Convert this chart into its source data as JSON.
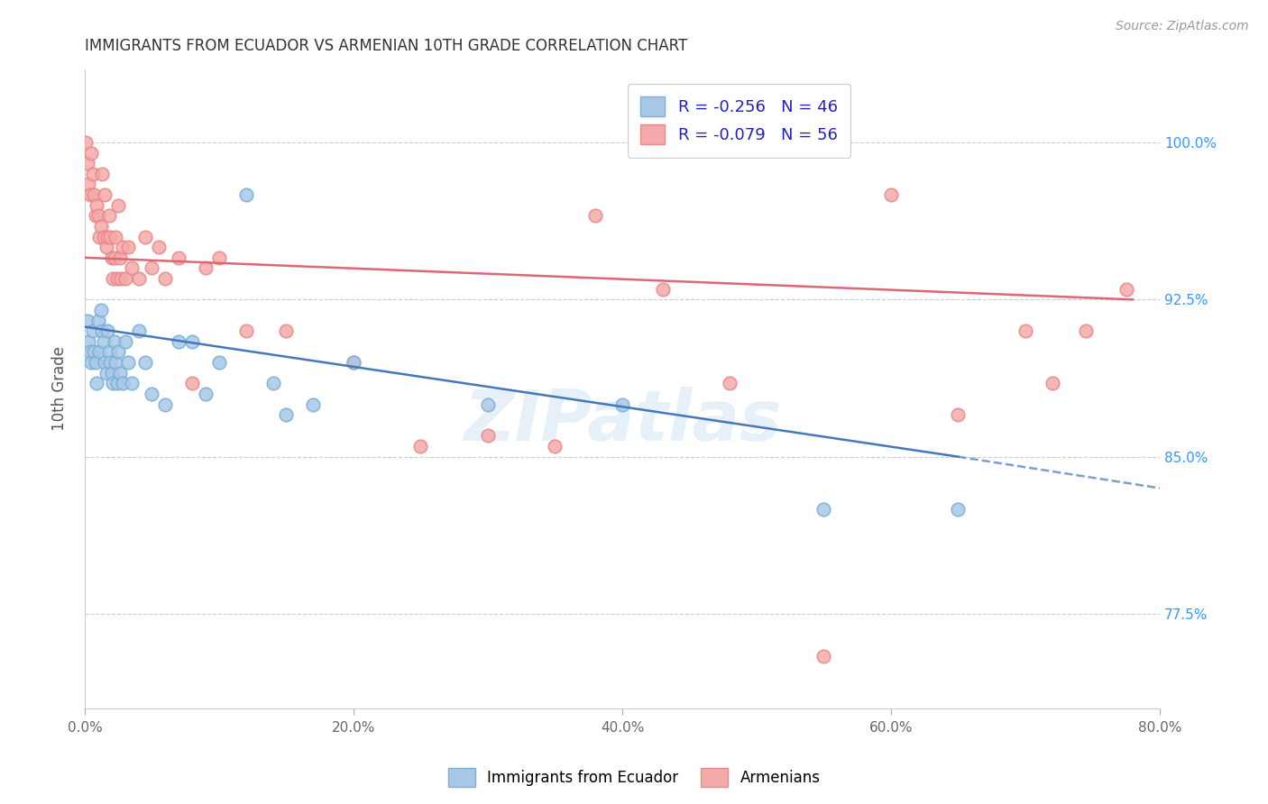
{
  "title": "IMMIGRANTS FROM ECUADOR VS ARMENIAN 10TH GRADE CORRELATION CHART",
  "source": "Source: ZipAtlas.com",
  "xlabel_ticks": [
    "0.0%",
    "20.0%",
    "40.0%",
    "60.0%",
    "80.0%"
  ],
  "xlabel_vals": [
    0.0,
    20.0,
    40.0,
    60.0,
    80.0
  ],
  "ylabel_ticks": [
    "77.5%",
    "85.0%",
    "92.5%",
    "100.0%"
  ],
  "ylabel_vals": [
    77.5,
    85.0,
    92.5,
    100.0
  ],
  "xlim": [
    0.0,
    80.0
  ],
  "ylim": [
    73.0,
    103.5
  ],
  "blue_label": "Immigrants from Ecuador",
  "pink_label": "Armenians",
  "blue_R": "-0.256",
  "blue_N": "46",
  "pink_R": "-0.079",
  "pink_N": "56",
  "blue_color": "#a8c8e8",
  "pink_color": "#f4aaaa",
  "blue_edge_color": "#7aafd4",
  "pink_edge_color": "#e88888",
  "blue_line_color": "#4477bb",
  "pink_line_color": "#dd6677",
  "legend_R_color": "#2222bb",
  "watermark": "ZIPatlas",
  "blue_points_x": [
    0.2,
    0.3,
    0.4,
    0.5,
    0.6,
    0.7,
    0.8,
    0.9,
    1.0,
    1.1,
    1.2,
    1.3,
    1.4,
    1.5,
    1.6,
    1.7,
    1.8,
    1.9,
    2.0,
    2.1,
    2.2,
    2.3,
    2.4,
    2.5,
    2.6,
    2.8,
    3.0,
    3.2,
    3.5,
    4.0,
    4.5,
    5.0,
    6.0,
    7.0,
    8.0,
    9.0,
    10.0,
    12.0,
    14.0,
    15.0,
    17.0,
    20.0,
    30.0,
    40.0,
    55.0,
    65.0
  ],
  "blue_points_y": [
    91.5,
    90.5,
    90.0,
    89.5,
    91.0,
    90.0,
    89.5,
    88.5,
    91.5,
    90.0,
    92.0,
    91.0,
    90.5,
    89.5,
    89.0,
    91.0,
    90.0,
    89.5,
    89.0,
    88.5,
    90.5,
    89.5,
    88.5,
    90.0,
    89.0,
    88.5,
    90.5,
    89.5,
    88.5,
    91.0,
    89.5,
    88.0,
    87.5,
    90.5,
    90.5,
    88.0,
    89.5,
    97.5,
    88.5,
    87.0,
    87.5,
    89.5,
    87.5,
    87.5,
    82.5,
    82.5
  ],
  "pink_points_x": [
    0.1,
    0.2,
    0.3,
    0.4,
    0.5,
    0.6,
    0.7,
    0.8,
    0.9,
    1.0,
    1.1,
    1.2,
    1.3,
    1.4,
    1.5,
    1.6,
    1.7,
    1.8,
    1.9,
    2.0,
    2.1,
    2.2,
    2.3,
    2.4,
    2.5,
    2.6,
    2.7,
    2.8,
    3.0,
    3.2,
    3.5,
    4.0,
    4.5,
    5.0,
    5.5,
    6.0,
    7.0,
    8.0,
    9.0,
    10.0,
    12.0,
    15.0,
    20.0,
    25.0,
    30.0,
    35.0,
    38.0,
    43.0,
    48.0,
    55.0,
    60.0,
    65.0,
    70.0,
    72.0,
    74.5,
    77.5
  ],
  "pink_points_y": [
    100.0,
    99.0,
    98.0,
    97.5,
    99.5,
    98.5,
    97.5,
    96.5,
    97.0,
    96.5,
    95.5,
    96.0,
    98.5,
    95.5,
    97.5,
    95.0,
    95.5,
    96.5,
    95.5,
    94.5,
    93.5,
    94.5,
    95.5,
    93.5,
    97.0,
    94.5,
    93.5,
    95.0,
    93.5,
    95.0,
    94.0,
    93.5,
    95.5,
    94.0,
    95.0,
    93.5,
    94.5,
    88.5,
    94.0,
    94.5,
    91.0,
    91.0,
    89.5,
    85.5,
    86.0,
    85.5,
    96.5,
    93.0,
    88.5,
    75.5,
    97.5,
    87.0,
    91.0,
    88.5,
    91.0,
    93.0
  ],
  "blue_line_x0": 0.0,
  "blue_line_x1": 65.0,
  "blue_line_y0": 91.2,
  "blue_line_y1": 85.0,
  "blue_line_dash_x0": 65.0,
  "blue_line_dash_x1": 80.0,
  "blue_line_dash_y0": 85.0,
  "blue_line_dash_y1": 83.5,
  "pink_line_x0": 0.0,
  "pink_line_x1": 78.0,
  "pink_line_y0": 94.5,
  "pink_line_y1": 92.5
}
